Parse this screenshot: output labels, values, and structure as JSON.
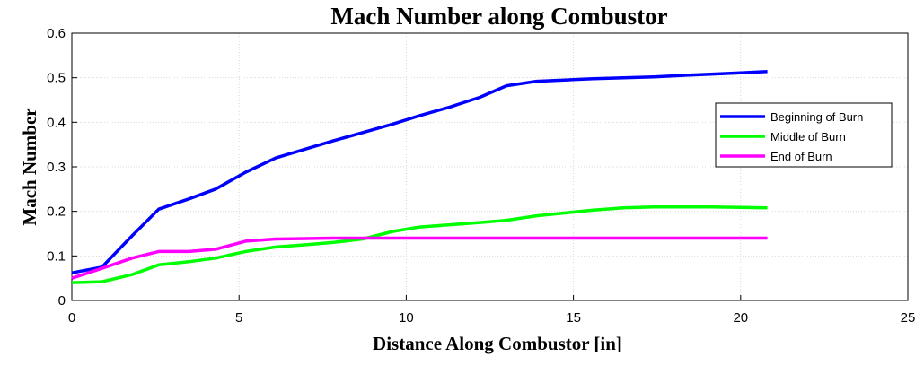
{
  "chart_data": {
    "type": "line",
    "title": "Mach Number along Combustor",
    "xlabel": "Distance Along Combustor [in]",
    "ylabel": "Mach Number",
    "xlim": [
      0,
      25
    ],
    "ylim": [
      0,
      0.6
    ],
    "xticks": [
      0,
      5,
      10,
      15,
      20,
      25
    ],
    "yticks": [
      0,
      0.1,
      0.2,
      0.3,
      0.4,
      0.5,
      0.6
    ],
    "grid": true,
    "legend_position": "right",
    "series": [
      {
        "name": "Beginning of Burn",
        "color": "#0000ff",
        "x": [
          0,
          0.9,
          1.8,
          2.6,
          3.5,
          4.3,
          5.2,
          6.1,
          7.0,
          7.8,
          8.7,
          9.6,
          10.4,
          11.3,
          12.2,
          13.0,
          13.9,
          14.8,
          15.6,
          16.5,
          17.4,
          18.2,
          19.1,
          20.0,
          20.8
        ],
        "y": [
          0.062,
          0.075,
          0.145,
          0.205,
          0.228,
          0.25,
          0.288,
          0.32,
          0.34,
          0.358,
          0.377,
          0.396,
          0.415,
          0.434,
          0.456,
          0.482,
          0.492,
          0.495,
          0.498,
          0.5,
          0.502,
          0.505,
          0.508,
          0.511,
          0.514
        ]
      },
      {
        "name": "Middle of Burn",
        "color": "#00ff00",
        "x": [
          0,
          0.9,
          1.8,
          2.6,
          3.5,
          4.3,
          5.2,
          6.1,
          7.0,
          7.8,
          8.7,
          9.6,
          10.4,
          11.3,
          12.2,
          13.0,
          13.9,
          14.8,
          15.6,
          16.5,
          17.4,
          18.2,
          19.1,
          20.0,
          20.8
        ],
        "y": [
          0.04,
          0.042,
          0.058,
          0.08,
          0.087,
          0.095,
          0.11,
          0.12,
          0.125,
          0.13,
          0.138,
          0.155,
          0.165,
          0.17,
          0.175,
          0.18,
          0.19,
          0.197,
          0.203,
          0.208,
          0.21,
          0.21,
          0.21,
          0.209,
          0.208
        ]
      },
      {
        "name": "End of Burn",
        "color": "#ff00ff",
        "x": [
          0,
          0.9,
          1.8,
          2.6,
          3.5,
          4.3,
          5.2,
          6.1,
          7.0,
          7.8,
          8.7,
          9.6,
          10.4,
          11.3,
          12.2,
          13.0,
          13.9,
          14.8,
          15.6,
          16.5,
          17.4,
          18.2,
          19.1,
          20.0,
          20.8
        ],
        "y": [
          0.05,
          0.072,
          0.095,
          0.11,
          0.11,
          0.115,
          0.133,
          0.138,
          0.139,
          0.14,
          0.14,
          0.14,
          0.14,
          0.14,
          0.14,
          0.14,
          0.14,
          0.14,
          0.14,
          0.14,
          0.14,
          0.14,
          0.14,
          0.14,
          0.14
        ]
      }
    ]
  }
}
